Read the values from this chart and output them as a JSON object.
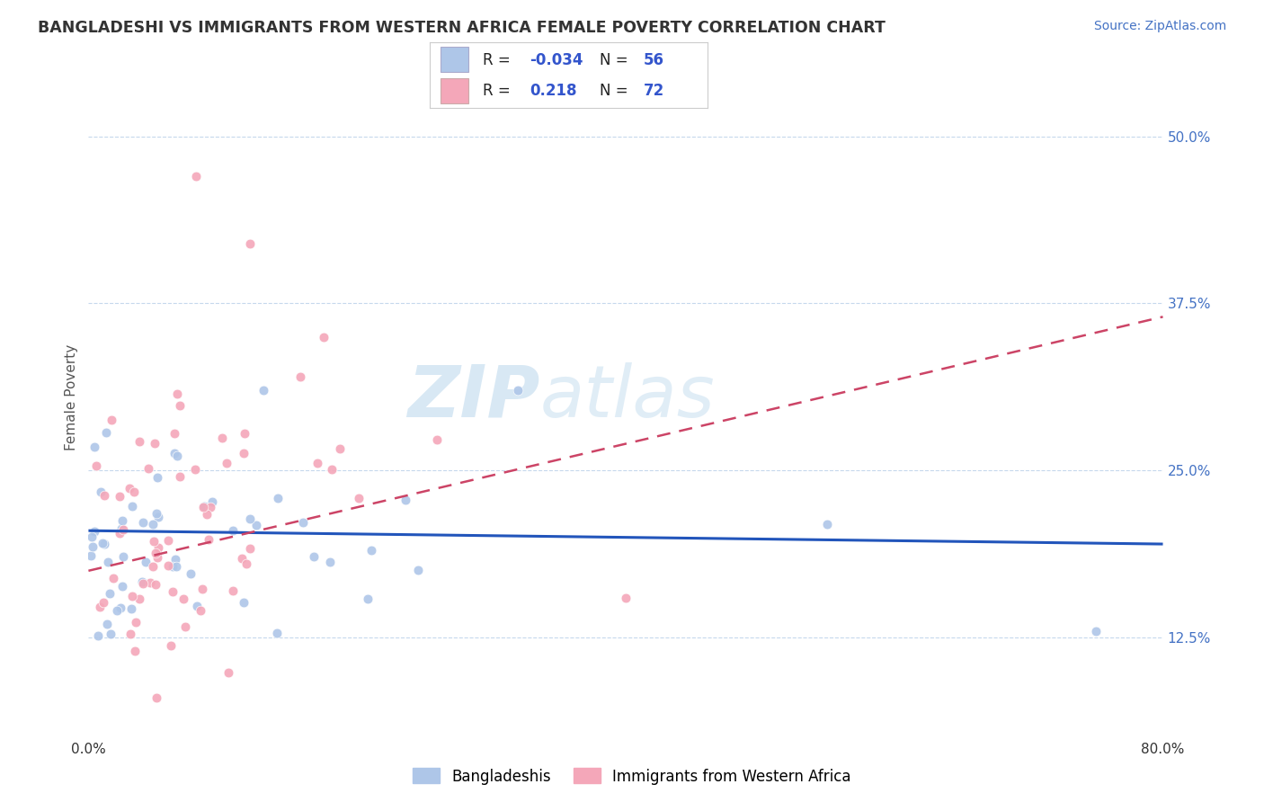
{
  "title": "BANGLADESHI VS IMMIGRANTS FROM WESTERN AFRICA FEMALE POVERTY CORRELATION CHART",
  "source": "Source: ZipAtlas.com",
  "ylabel": "Female Poverty",
  "yticks": [
    0.125,
    0.25,
    0.375,
    0.5
  ],
  "ytick_labels": [
    "12.5%",
    "25.0%",
    "37.5%",
    "50.0%"
  ],
  "xlim": [
    0.0,
    0.8
  ],
  "ylim": [
    0.05,
    0.56
  ],
  "legend_r1": "-0.034",
  "legend_n1": "56",
  "legend_r2": "0.218",
  "legend_n2": "72",
  "color_blue": "#aec6e8",
  "color_pink": "#f4a7b9",
  "color_blue_line": "#2255bb",
  "color_pink_line": "#cc4466",
  "watermark_color": "#d8edf8",
  "series1_label": "Bangladeshis",
  "series2_label": "Immigrants from Western Africa",
  "blue_line_start_y": 0.205,
  "blue_line_end_y": 0.195,
  "pink_line_start_y": 0.175,
  "pink_line_end_y": 0.365
}
